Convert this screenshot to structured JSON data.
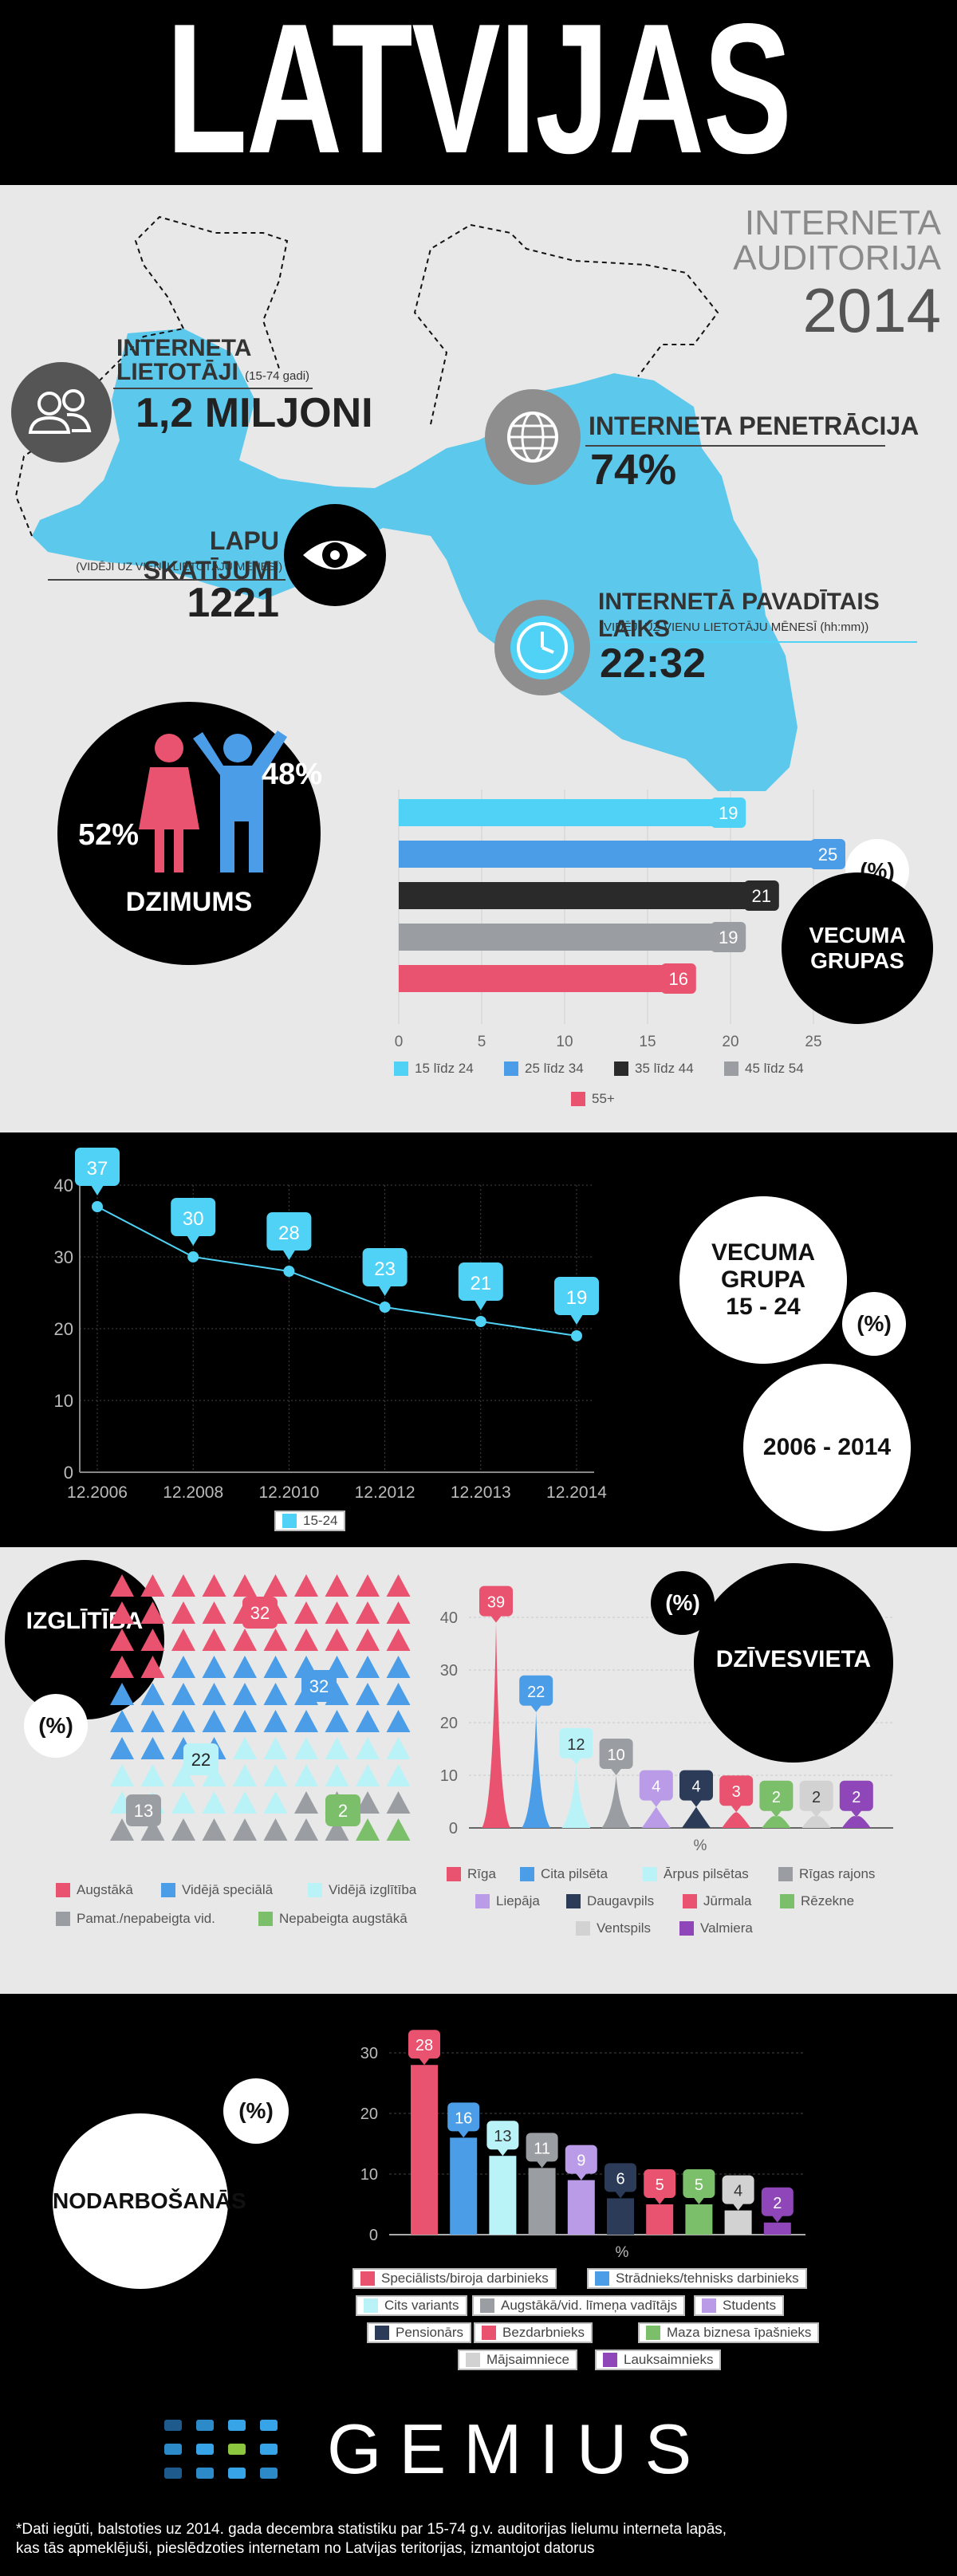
{
  "header": {
    "title": "LATVIJAS"
  },
  "audience": {
    "title_line1": "INTERNETA",
    "title_line2": "AUDITORIJA",
    "year": "2014",
    "users_label1": "INTERNETA",
    "users_label2": "LIETOTĀJI",
    "users_note": "(15-74 gadi)",
    "users_value": "1,2 MILJONI",
    "penetration_label": "INTERNETA PENETRĀCIJA",
    "penetration_value": "74%",
    "pageviews_label": "LAPU SKATĪJUMI",
    "pageviews_note": "(VIDĒJI UZ VIENU LIETOTĀJU MĒNESĪ)",
    "pageviews_value": "1221",
    "time_label": "INTERNETĀ PAVADĪTAIS LAIKS",
    "time_note": "(VIDĒJI UZ VIENU LIETOTĀJU MĒNESĪ (hh:mm))",
    "time_value": "22:32"
  },
  "gender": {
    "female": "52%",
    "male": "48%",
    "label": "DZIMUMS"
  },
  "age_groups": {
    "label1": "VECUMA",
    "label2": "GRUPAS",
    "unit": "(%)"
  },
  "trend": {
    "label1": "VECUMA",
    "label2": "GRUPA",
    "label3": "15 - 24",
    "unit": "(%)",
    "period": "2006 - 2014"
  },
  "education": {
    "label": "IZGLĪTĪBA",
    "unit": "(%)"
  },
  "residence": {
    "label": "DZĪVESVIETA",
    "unit": "(%)"
  },
  "occupation": {
    "label": "NODARBOŠANĀS",
    "unit": "(%)"
  },
  "brand": {
    "name": "GEMIUS"
  },
  "footnote": {
    "line1": "*Dati iegūti, balstoties uz 2014. gada decembra statistiku par 15-74 g.v. auditorijas lielumu interneta lapās,",
    "line2": "kas tās apmeklējuši, pieslēdzoties internetam no Latvijas teritorijas, izmantojot datorus"
  },
  "colors": {
    "map": "#5bc8ec",
    "cyan": "#4fd2f5",
    "blue": "#4a9de6",
    "dark": "#2a2a2a",
    "grey": "#9a9ea3",
    "pink": "#e9536f",
    "light_cyan": "#b9f3f7",
    "lilac": "#b99be8",
    "navy": "#2c3b57",
    "green": "#7cbf6a",
    "light_grey": "#d2d2d2",
    "purple": "#8e46b8"
  },
  "chart_data": [
    {
      "type": "bar",
      "categories": [
        "15 līdz 24",
        "25 līdz 34",
        "35 līdz 44",
        "45 līdz 54",
        "55+"
      ],
      "values": [
        19,
        25,
        21,
        19,
        16
      ],
      "xticks": [
        "0",
        "5",
        "10",
        "15",
        "20",
        "25"
      ],
      "xlim": [
        0,
        25
      ]
    },
    {
      "type": "line",
      "x": [
        "12.2006",
        "12.2008",
        "12.2010",
        "12.2012",
        "12.2013",
        "12.2014"
      ],
      "series": [
        {
          "name": "15-24",
          "values": [
            37,
            30,
            28,
            23,
            21,
            19
          ]
        }
      ],
      "yticks": [
        "0",
        "10",
        "20",
        "30",
        "40"
      ],
      "ylim": [
        0,
        40
      ],
      "grid": true
    },
    {
      "type": "pictogram",
      "categories": [
        "Augstākā",
        "Vidējā speciālā",
        "Vidējā izglītība",
        "Pamat./nepabeigta vid.",
        "Nepabeigta augstākā"
      ],
      "values": [
        32,
        32,
        22,
        13,
        2
      ]
    },
    {
      "type": "bar",
      "categories": [
        "Rīga",
        "Cita pilsēta",
        "Ārpus pilsētas",
        "Rīgas rajons",
        "Liepāja",
        "Daugavpils",
        "Jūrmala",
        "Rēzekne",
        "Ventspils",
        "Valmiera"
      ],
      "values": [
        39,
        22,
        12,
        10,
        4,
        4,
        3,
        2,
        2,
        2
      ],
      "xlabel": "%",
      "yticks": [
        "0",
        "10",
        "20",
        "30",
        "40"
      ],
      "ylim": [
        0,
        40
      ]
    },
    {
      "type": "bar",
      "categories": [
        "Speciālists/biroja darbinieks",
        "Strādnieks/tehnisks darbinieks",
        "Cits variants",
        "Augstākā/vid. līmeņa vadītājs",
        "Students",
        "Pensionārs",
        "Bezdarbnieks",
        "Maza biznesa īpašnieks",
        "Mājsaimniece",
        "Lauksaimnieks"
      ],
      "values": [
        28,
        16,
        13,
        11,
        9,
        6,
        5,
        5,
        4,
        2
      ],
      "xlabel": "%",
      "yticks": [
        "0",
        "10",
        "20",
        "30"
      ],
      "ylim": [
        0,
        30
      ]
    }
  ]
}
